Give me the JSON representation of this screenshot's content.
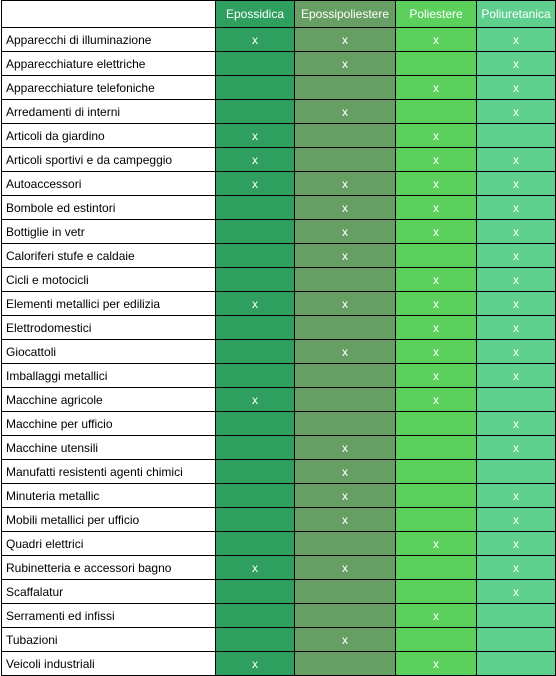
{
  "columns": [
    "Epossidica",
    "Epossipoliestere",
    "Poliestere",
    "Poliuretanica"
  ],
  "column_colors": [
    "#2e9f5e",
    "#669e63",
    "#5cd05c",
    "#5fcf8e"
  ],
  "mark_symbol": "x",
  "rows": [
    {
      "label": "Apparecchi di illuminazione",
      "marks": [
        "x",
        "x",
        "x",
        "x"
      ]
    },
    {
      "label": "Apparecchiature elettriche",
      "marks": [
        "",
        "x",
        "",
        "x"
      ]
    },
    {
      "label": "Apparecchiature telefoniche",
      "marks": [
        "",
        "",
        "x",
        "x"
      ]
    },
    {
      "label": "Arredamenti di interni",
      "marks": [
        "",
        "x",
        "",
        "x"
      ]
    },
    {
      "label": "Articoli da giardino",
      "marks": [
        "x",
        "",
        "x",
        ""
      ]
    },
    {
      "label": "Articoli sportivi e da campeggio",
      "marks": [
        "x",
        "",
        "x",
        "x"
      ]
    },
    {
      "label": "Autoaccessori",
      "marks": [
        "x",
        "x",
        "x",
        "x"
      ]
    },
    {
      "label": "Bombole ed estintori",
      "marks": [
        "",
        "x",
        "x",
        "x"
      ]
    },
    {
      "label": "Bottiglie in vetr",
      "marks": [
        "",
        "x",
        "x",
        "x"
      ]
    },
    {
      "label": "Caloriferi stufe e caldaie",
      "marks": [
        "",
        "x",
        "",
        "x"
      ]
    },
    {
      "label": "Cicli e motocicli",
      "marks": [
        "",
        "",
        "x",
        "x"
      ]
    },
    {
      "label": "Elementi metallici per edilizia",
      "marks": [
        "x",
        "x",
        "x",
        "x"
      ]
    },
    {
      "label": "Elettrodomestici",
      "marks": [
        "",
        "",
        "x",
        "x"
      ]
    },
    {
      "label": "Giocattoli",
      "marks": [
        "",
        "x",
        "x",
        "x"
      ]
    },
    {
      "label": "Imballaggi metallici",
      "marks": [
        "",
        "",
        "x",
        "x"
      ]
    },
    {
      "label": "Macchine agricole",
      "marks": [
        "x",
        "",
        "x",
        ""
      ]
    },
    {
      "label": "Macchine per ufficio",
      "marks": [
        "",
        "",
        "",
        "x"
      ]
    },
    {
      "label": "Macchine utensili",
      "marks": [
        "",
        "x",
        "",
        "x"
      ]
    },
    {
      "label": "Manufatti resistenti agenti chimici",
      "marks": [
        "",
        "x",
        "",
        ""
      ]
    },
    {
      "label": "Minuteria metallic",
      "marks": [
        "",
        "x",
        "",
        "x"
      ]
    },
    {
      "label": "Mobili metallici per ufficio",
      "marks": [
        "",
        "x",
        "",
        "x"
      ]
    },
    {
      "label": "Quadri elettrici",
      "marks": [
        "",
        "",
        "x",
        "x"
      ]
    },
    {
      "label": "Rubinetteria e accessori bagno",
      "marks": [
        "x",
        "x",
        "",
        "x"
      ]
    },
    {
      "label": "Scaffalatur",
      "marks": [
        "",
        "",
        "",
        "x"
      ]
    },
    {
      "label": "Serramenti ed infissi",
      "marks": [
        "",
        "",
        "x",
        ""
      ]
    },
    {
      "label": "Tubazioni",
      "marks": [
        "",
        "x",
        "",
        ""
      ]
    },
    {
      "label": "Veicoli industriali",
      "marks": [
        "x",
        "",
        "x",
        ""
      ]
    }
  ]
}
